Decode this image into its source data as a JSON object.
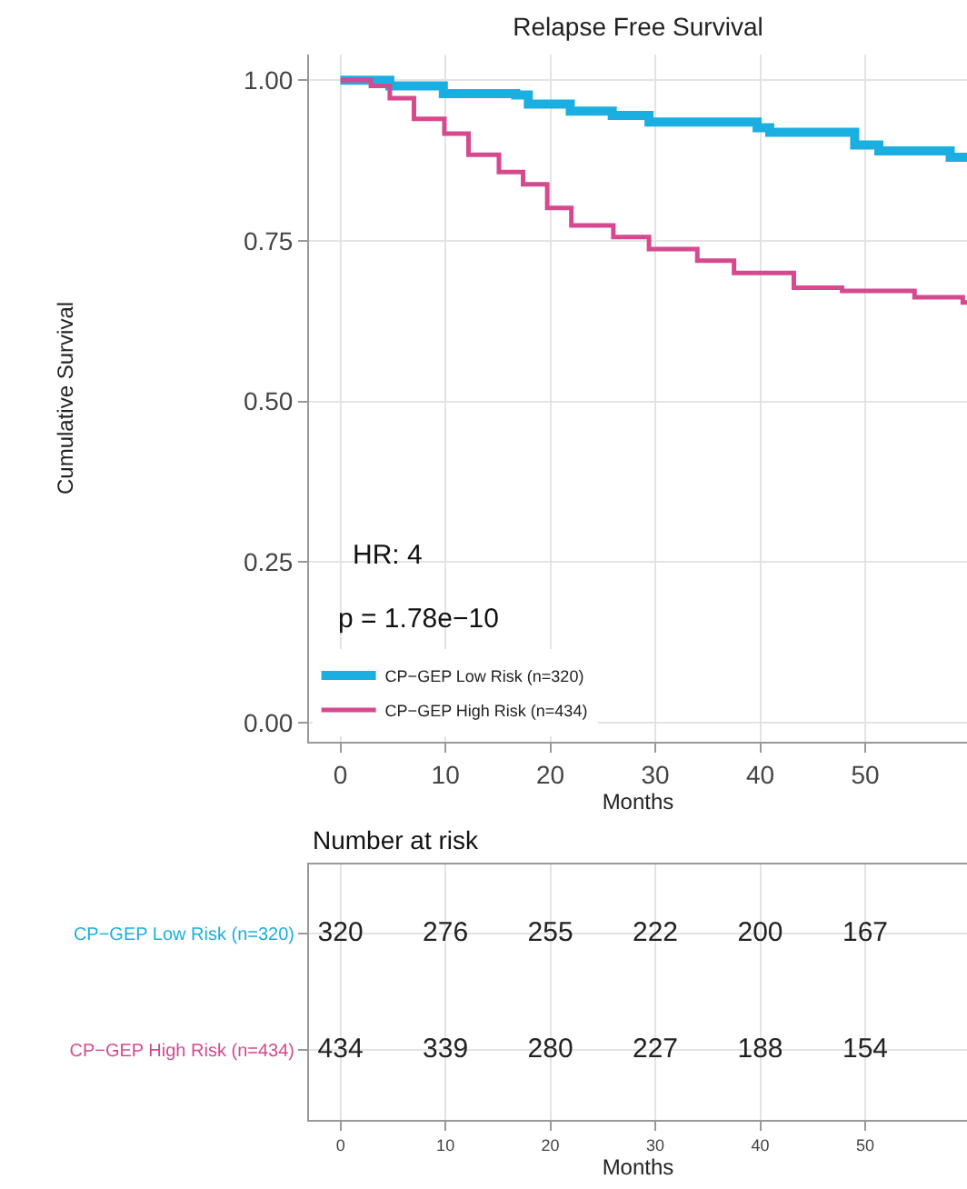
{
  "chart_data": [
    {
      "type": "step",
      "title": "Relapse Free Survival",
      "xlabel": "Months",
      "ylabel": "Cumulative Survival",
      "xlim": [
        -3,
        59.7
      ],
      "xticks": [
        0,
        10,
        20,
        30,
        40,
        50
      ],
      "ylim": [
        -0.03,
        1.04
      ],
      "yticks": [
        {
          "value": 0,
          "label": "0.00"
        },
        {
          "value": 0.25,
          "label": "0.25"
        },
        {
          "value": 0.5,
          "label": "0.50"
        },
        {
          "value": 0.75,
          "label": "0.75"
        },
        {
          "value": 1,
          "label": "1.00"
        }
      ],
      "grid": true,
      "legend": "bottom left",
      "marker": "none",
      "line_style": "solid",
      "annotations": [
        "HR: 4",
        "p = 1.78e−10"
      ],
      "series": [
        {
          "name": "CP−GEP Low Risk (n=320)",
          "color": "#1aafe0",
          "x": [
            0,
            4.7,
            9.8,
            16.7,
            17.9,
            21.9,
            25.9,
            29.4,
            39.7,
            40.9,
            47.2,
            49,
            51.3,
            58.1,
            59.7
          ],
          "values": [
            1.0,
            0.991,
            0.979,
            0.977,
            0.963,
            0.952,
            0.945,
            0.935,
            0.926,
            0.919,
            0.919,
            0.899,
            0.89,
            0.88,
            0.88
          ]
        },
        {
          "name": "CP−GEP High Risk (n=434)",
          "color": "#d6498f",
          "x": [
            0,
            2.9,
            4.7,
            7,
            9.9,
            12.2,
            15.1,
            17.4,
            19.7,
            22,
            26,
            29.4,
            34,
            37.5,
            43.2,
            47.8,
            54.7,
            59.3,
            59.7
          ],
          "values": [
            1.0,
            0.991,
            0.972,
            0.94,
            0.917,
            0.884,
            0.857,
            0.838,
            0.801,
            0.774,
            0.756,
            0.737,
            0.719,
            0.7,
            0.677,
            0.672,
            0.662,
            0.654,
            0.654
          ]
        }
      ]
    },
    {
      "type": "heatmap",
      "title": "Number at risk",
      "xlabel": "Months",
      "categories": [
        "0",
        "10",
        "20",
        "30",
        "40",
        "50"
      ],
      "y_categories": [
        "CP−GEP Low Risk (n=320)",
        "CP−GEP High Risk (n=434)"
      ],
      "grid": true,
      "data_labels": true,
      "cells": [
        [
          320,
          276,
          255,
          222,
          200,
          167
        ],
        [
          434,
          339,
          280,
          227,
          188,
          154
        ]
      ]
    }
  ]
}
